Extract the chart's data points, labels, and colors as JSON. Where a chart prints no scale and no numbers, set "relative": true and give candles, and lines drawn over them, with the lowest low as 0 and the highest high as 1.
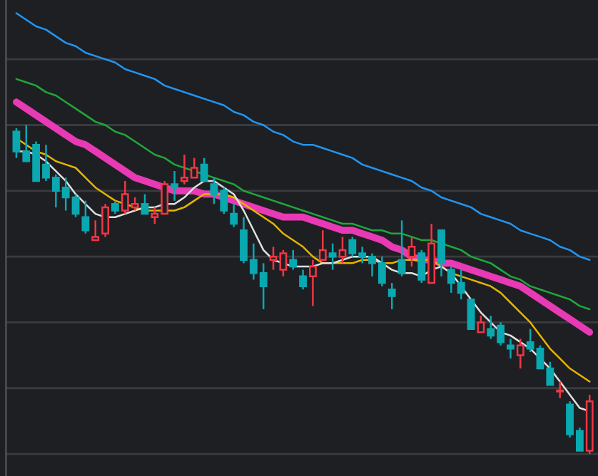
{
  "chart_data": {
    "type": "candlestick",
    "relative": true,
    "grid": "y",
    "categories": [
      null,
      null,
      null,
      null,
      null,
      null,
      null,
      null,
      null,
      null,
      null,
      null,
      null,
      null,
      null,
      null,
      null,
      null,
      null,
      null,
      null,
      null,
      null,
      null,
      null,
      null,
      null,
      null,
      null,
      null,
      null,
      null,
      null,
      null,
      null,
      null,
      null,
      null,
      null,
      null,
      null,
      null,
      null,
      null,
      null,
      null,
      null,
      null,
      null,
      null,
      null,
      null,
      null,
      null,
      null,
      null,
      null,
      null,
      null
    ],
    "ohlc": [
      [
        0.98,
        0.99,
        0.9,
        0.92
      ],
      [
        0.92,
        1.0,
        0.89,
        0.89
      ],
      [
        0.94,
        0.95,
        0.83,
        0.83
      ],
      [
        0.88,
        0.94,
        0.83,
        0.84
      ],
      [
        0.84,
        0.85,
        0.75,
        0.8
      ],
      [
        0.81,
        0.84,
        0.74,
        0.78
      ],
      [
        0.78,
        0.79,
        0.72,
        0.73
      ],
      [
        0.72,
        0.77,
        0.67,
        0.68
      ],
      [
        0.65,
        0.71,
        0.65,
        0.66
      ],
      [
        0.67,
        0.76,
        0.66,
        0.75
      ],
      [
        0.76,
        0.77,
        0.73,
        0.74
      ],
      [
        0.74,
        0.83,
        0.73,
        0.79
      ],
      [
        0.75,
        0.78,
        0.74,
        0.76
      ],
      [
        0.76,
        0.79,
        0.73,
        0.73
      ],
      [
        0.72,
        0.75,
        0.7,
        0.73
      ],
      [
        0.73,
        0.83,
        0.73,
        0.82
      ],
      [
        0.82,
        0.86,
        0.77,
        0.81
      ],
      [
        0.83,
        0.91,
        0.82,
        0.84
      ],
      [
        0.84,
        0.9,
        0.84,
        0.87
      ],
      [
        0.88,
        0.9,
        0.83,
        0.83
      ],
      [
        0.82,
        0.84,
        0.76,
        0.79
      ],
      [
        0.8,
        0.81,
        0.73,
        0.74
      ],
      [
        0.73,
        0.76,
        0.69,
        0.7
      ],
      [
        0.68,
        0.72,
        0.58,
        0.59
      ],
      [
        0.59,
        0.64,
        0.53,
        0.55
      ],
      [
        0.55,
        0.58,
        0.44,
        0.51
      ],
      [
        0.59,
        0.63,
        0.56,
        0.6
      ],
      [
        0.56,
        0.62,
        0.54,
        0.61
      ],
      [
        0.59,
        0.62,
        0.56,
        0.57
      ],
      [
        0.54,
        0.56,
        0.5,
        0.51
      ],
      [
        0.54,
        0.59,
        0.45,
        0.57
      ],
      [
        0.59,
        0.68,
        0.59,
        0.62
      ],
      [
        0.61,
        0.64,
        0.56,
        0.6
      ],
      [
        0.6,
        0.66,
        0.58,
        0.62
      ],
      [
        0.65,
        0.66,
        0.6,
        0.61
      ],
      [
        0.61,
        0.63,
        0.58,
        0.6
      ],
      [
        0.6,
        0.61,
        0.54,
        0.58
      ],
      [
        0.58,
        0.6,
        0.51,
        0.52
      ],
      [
        0.5,
        0.52,
        0.44,
        0.48
      ],
      [
        0.59,
        0.71,
        0.54,
        0.55
      ],
      [
        0.6,
        0.66,
        0.57,
        0.63
      ],
      [
        0.61,
        0.62,
        0.52,
        0.53
      ],
      [
        0.52,
        0.7,
        0.52,
        0.64
      ],
      [
        0.68,
        0.68,
        0.54,
        0.58
      ],
      [
        0.56,
        0.57,
        0.49,
        0.52
      ],
      [
        0.52,
        0.56,
        0.47,
        0.49
      ],
      [
        0.47,
        0.47,
        0.38,
        0.38
      ],
      [
        0.37,
        0.42,
        0.37,
        0.4
      ],
      [
        0.38,
        0.42,
        0.35,
        0.36
      ],
      [
        0.39,
        0.4,
        0.33,
        0.34
      ],
      [
        0.33,
        0.35,
        0.29,
        0.32
      ],
      [
        0.3,
        0.35,
        0.26,
        0.33
      ],
      [
        0.34,
        0.38,
        0.31,
        0.32
      ],
      [
        0.32,
        0.33,
        0.26,
        0.26
      ],
      [
        0.26,
        0.28,
        0.21,
        0.21
      ],
      [
        0.19,
        0.22,
        0.17,
        0.19
      ],
      [
        0.15,
        0.16,
        0.05,
        0.06
      ],
      [
        0.07,
        0.08,
        0.01,
        0.01
      ],
      [
        0.01,
        0.18,
        0.0,
        0.16
      ]
    ],
    "colors": [
      "#0aa8b0",
      "#0aa8b0",
      "#0aa8b0",
      "#0aa8b0",
      "#0aa8b0",
      "#0aa8b0",
      "#0aa8b0",
      "#0aa8b0",
      "#f23645",
      "#f23645",
      "#0aa8b0",
      "#f23645",
      "#f23645",
      "#0aa8b0",
      "#f23645",
      "#f23645",
      "#0aa8b0",
      "#f23645",
      "#f23645",
      "#0aa8b0",
      "#0aa8b0",
      "#0aa8b0",
      "#0aa8b0",
      "#0aa8b0",
      "#0aa8b0",
      "#0aa8b0",
      "#f23645",
      "#f23645",
      "#0aa8b0",
      "#0aa8b0",
      "#f23645",
      "#f23645",
      "#0aa8b0",
      "#f23645",
      "#0aa8b0",
      "#0aa8b0",
      "#0aa8b0",
      "#0aa8b0",
      "#0aa8b0",
      "#0aa8b0",
      "#f23645",
      "#0aa8b0",
      "#f23645",
      "#0aa8b0",
      "#0aa8b0",
      "#0aa8b0",
      "#0aa8b0",
      "#f23645",
      "#0aa8b0",
      "#0aa8b0",
      "#0aa8b0",
      "#f23645",
      "#0aa8b0",
      "#0aa8b0",
      "#0aa8b0",
      "#f23645",
      "#0aa8b0",
      "#0aa8b0",
      "#f23645"
    ],
    "series": [
      {
        "type": "line",
        "color": "#2196f3",
        "values": [
          1.34,
          1.32,
          1.3,
          1.29,
          1.27,
          1.25,
          1.24,
          1.22,
          1.21,
          1.2,
          1.19,
          1.17,
          1.16,
          1.15,
          1.14,
          1.12,
          1.11,
          1.1,
          1.09,
          1.08,
          1.07,
          1.06,
          1.04,
          1.03,
          1.01,
          1.0,
          0.98,
          0.97,
          0.95,
          0.94,
          0.94,
          0.93,
          0.92,
          0.91,
          0.9,
          0.88,
          0.87,
          0.86,
          0.85,
          0.84,
          0.83,
          0.81,
          0.8,
          0.78,
          0.77,
          0.76,
          0.75,
          0.73,
          0.72,
          0.71,
          0.7,
          0.68,
          0.67,
          0.66,
          0.65,
          0.63,
          0.62,
          0.6,
          0.59
        ]
      },
      {
        "type": "line",
        "color": "#1fa83a",
        "values": [
          1.14,
          1.13,
          1.12,
          1.1,
          1.09,
          1.07,
          1.05,
          1.03,
          1.01,
          1.0,
          0.98,
          0.97,
          0.95,
          0.93,
          0.91,
          0.9,
          0.88,
          0.87,
          0.86,
          0.85,
          0.84,
          0.83,
          0.82,
          0.8,
          0.79,
          0.78,
          0.77,
          0.76,
          0.75,
          0.74,
          0.73,
          0.72,
          0.71,
          0.7,
          0.7,
          0.69,
          0.68,
          0.68,
          0.67,
          0.67,
          0.66,
          0.65,
          0.65,
          0.64,
          0.63,
          0.62,
          0.6,
          0.59,
          0.58,
          0.56,
          0.54,
          0.53,
          0.51,
          0.5,
          0.49,
          0.48,
          0.47,
          0.45,
          0.44
        ]
      },
      {
        "type": "line",
        "color": "#e83ab4",
        "values": [
          1.07,
          1.05,
          1.03,
          1.01,
          0.99,
          0.97,
          0.95,
          0.94,
          0.92,
          0.9,
          0.88,
          0.86,
          0.84,
          0.83,
          0.82,
          0.81,
          0.8,
          0.8,
          0.8,
          0.79,
          0.79,
          0.78,
          0.77,
          0.76,
          0.75,
          0.74,
          0.73,
          0.72,
          0.72,
          0.72,
          0.71,
          0.7,
          0.69,
          0.68,
          0.68,
          0.67,
          0.66,
          0.65,
          0.63,
          0.62,
          0.6,
          0.59,
          0.59,
          0.58,
          0.58,
          0.57,
          0.56,
          0.55,
          0.54,
          0.53,
          0.52,
          0.51,
          0.49,
          0.47,
          0.45,
          0.43,
          0.41,
          0.39,
          0.37
        ]
      },
      {
        "type": "line",
        "color": "#e5b400",
        "values": [
          0.96,
          0.94,
          0.92,
          0.91,
          0.89,
          0.88,
          0.87,
          0.84,
          0.81,
          0.79,
          0.77,
          0.76,
          0.75,
          0.74,
          0.74,
          0.74,
          0.74,
          0.75,
          0.77,
          0.79,
          0.79,
          0.79,
          0.78,
          0.76,
          0.74,
          0.72,
          0.7,
          0.67,
          0.65,
          0.63,
          0.6,
          0.58,
          0.58,
          0.58,
          0.58,
          0.59,
          0.59,
          0.58,
          0.58,
          0.59,
          0.59,
          0.59,
          0.59,
          0.57,
          0.55,
          0.54,
          0.53,
          0.52,
          0.51,
          0.49,
          0.46,
          0.43,
          0.4,
          0.36,
          0.32,
          0.29,
          0.26,
          0.24,
          0.22
        ]
      },
      {
        "type": "line",
        "color": "#e0e0e0",
        "values": [
          0.92,
          0.92,
          0.91,
          0.89,
          0.86,
          0.83,
          0.79,
          0.76,
          0.73,
          0.72,
          0.72,
          0.73,
          0.74,
          0.75,
          0.75,
          0.76,
          0.76,
          0.78,
          0.81,
          0.83,
          0.83,
          0.81,
          0.79,
          0.74,
          0.68,
          0.62,
          0.59,
          0.58,
          0.57,
          0.57,
          0.57,
          0.58,
          0.58,
          0.59,
          0.6,
          0.6,
          0.6,
          0.58,
          0.56,
          0.55,
          0.55,
          0.54,
          0.56,
          0.57,
          0.55,
          0.51,
          0.47,
          0.43,
          0.4,
          0.37,
          0.36,
          0.34,
          0.32,
          0.29,
          0.26,
          0.22,
          0.18,
          0.14,
          0.13
        ]
      }
    ]
  }
}
